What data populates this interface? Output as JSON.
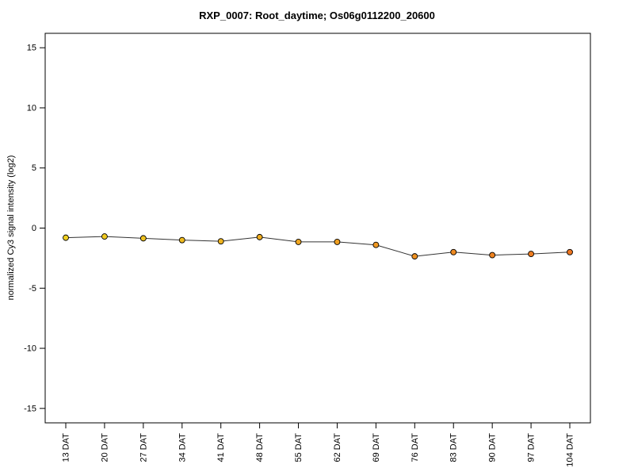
{
  "chart_data": {
    "type": "line",
    "title": "RXP_0007: Root_daytime; Os06g0112200_20600",
    "ylabel": "normalized Cy3 signal intensity (log2)",
    "xlabel": "",
    "categories": [
      "13 DAT",
      "20 DAT",
      "27 DAT",
      "34 DAT",
      "41 DAT",
      "48 DAT",
      "55 DAT",
      "62 DAT",
      "69 DAT",
      "76 DAT",
      "83 DAT",
      "90 DAT",
      "97 DAT",
      "104 DAT"
    ],
    "values": [
      -0.8,
      -0.7,
      -0.85,
      -1.0,
      -1.1,
      -0.75,
      -1.15,
      -1.15,
      -1.4,
      -2.35,
      -2.0,
      -2.25,
      -2.15,
      -2.0
    ],
    "point_colors": [
      "#F0D020",
      "#F0C920",
      "#EFC220",
      "#EFBB20",
      "#EFB420",
      "#EFAD21",
      "#EFA621",
      "#EF9F21",
      "#EF9821",
      "#EE9121",
      "#EE8A21",
      "#EE8321",
      "#EE7D21",
      "#EE7621"
    ],
    "yticks": [
      -15,
      -10,
      -5,
      0,
      5,
      10,
      15
    ],
    "ylim": [
      -16.2,
      16.2
    ],
    "line_color": "#333333",
    "point_border_color": "#000000",
    "axis_color": "#000000",
    "grid": false,
    "legend": "none"
  }
}
